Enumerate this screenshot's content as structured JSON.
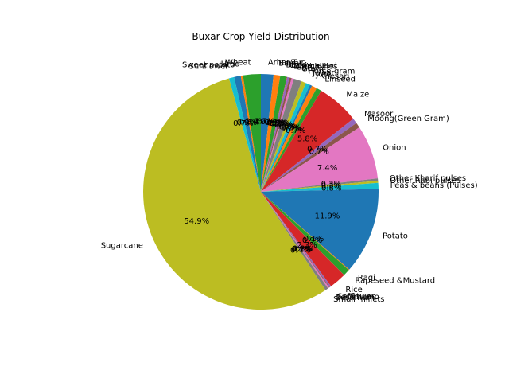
{
  "chart_data": {
    "type": "pie",
    "title": "Buxar Crop Yield Distribution",
    "start_angle_deg": 90,
    "direction": "clockwise",
    "colors": [
      "#1f77b4",
      "#ff7f0e",
      "#2ca02c",
      "#d62728",
      "#9467bd",
      "#8c564b",
      "#e377c2",
      "#7f7f7f",
      "#bcbd22",
      "#17becf"
    ],
    "slices": [
      {
        "label": "Arhar/Tur",
        "value": 1.7
      },
      {
        "label": "Bajra",
        "value": 0.9
      },
      {
        "label": "Barley",
        "value": 0.9
      },
      {
        "label": "Castor seed",
        "value": 0.05
      },
      {
        "label": "Coriander",
        "value": 0.3
      },
      {
        "label": "Dry chillies",
        "value": 0.3
      },
      {
        "label": "Garlic",
        "value": 0.3
      },
      {
        "label": "Gram",
        "value": 1.1
      },
      {
        "label": "Horse-gram",
        "value": 0.6
      },
      {
        "label": "Jowar",
        "value": 0.6
      },
      {
        "label": "Jute",
        "value": 0.3
      },
      {
        "label": "Khesari",
        "value": 0.7
      },
      {
        "label": "Linseed",
        "value": 0.7
      },
      {
        "label": "Maize",
        "value": 5.7
      },
      {
        "label": "Masoor",
        "value": 0.7
      },
      {
        "label": "Moong(Green Gram)",
        "value": 0.7
      },
      {
        "label": "Onion",
        "value": 7.3
      },
      {
        "label": "Other Kharif pulses",
        "value": 0.3
      },
      {
        "label": "Other Rabi pulses",
        "value": 0.3
      },
      {
        "label": "Peas & beans (Pulses)",
        "value": 0.8
      },
      {
        "label": "Potato",
        "value": 11.7
      },
      {
        "label": "Ragi",
        "value": 0.1
      },
      {
        "label": "Rapeseed &Mustard",
        "value": 0.9
      },
      {
        "label": "Rice",
        "value": 2.3
      },
      {
        "label": "Safflower",
        "value": 0.2
      },
      {
        "label": "Sannhamp",
        "value": 0.1
      },
      {
        "label": "Sesamum",
        "value": 0.2
      },
      {
        "label": "Small millets",
        "value": 0.4
      },
      {
        "label": "Sugarcane",
        "value": 54.1
      },
      {
        "label": "Sunflower",
        "value": 0.7
      },
      {
        "label": "Sweet potato",
        "value": 0.9
      },
      {
        "label": "Urad",
        "value": 0.3
      },
      {
        "label": "Wheat",
        "value": 2.4
      }
    ]
  }
}
